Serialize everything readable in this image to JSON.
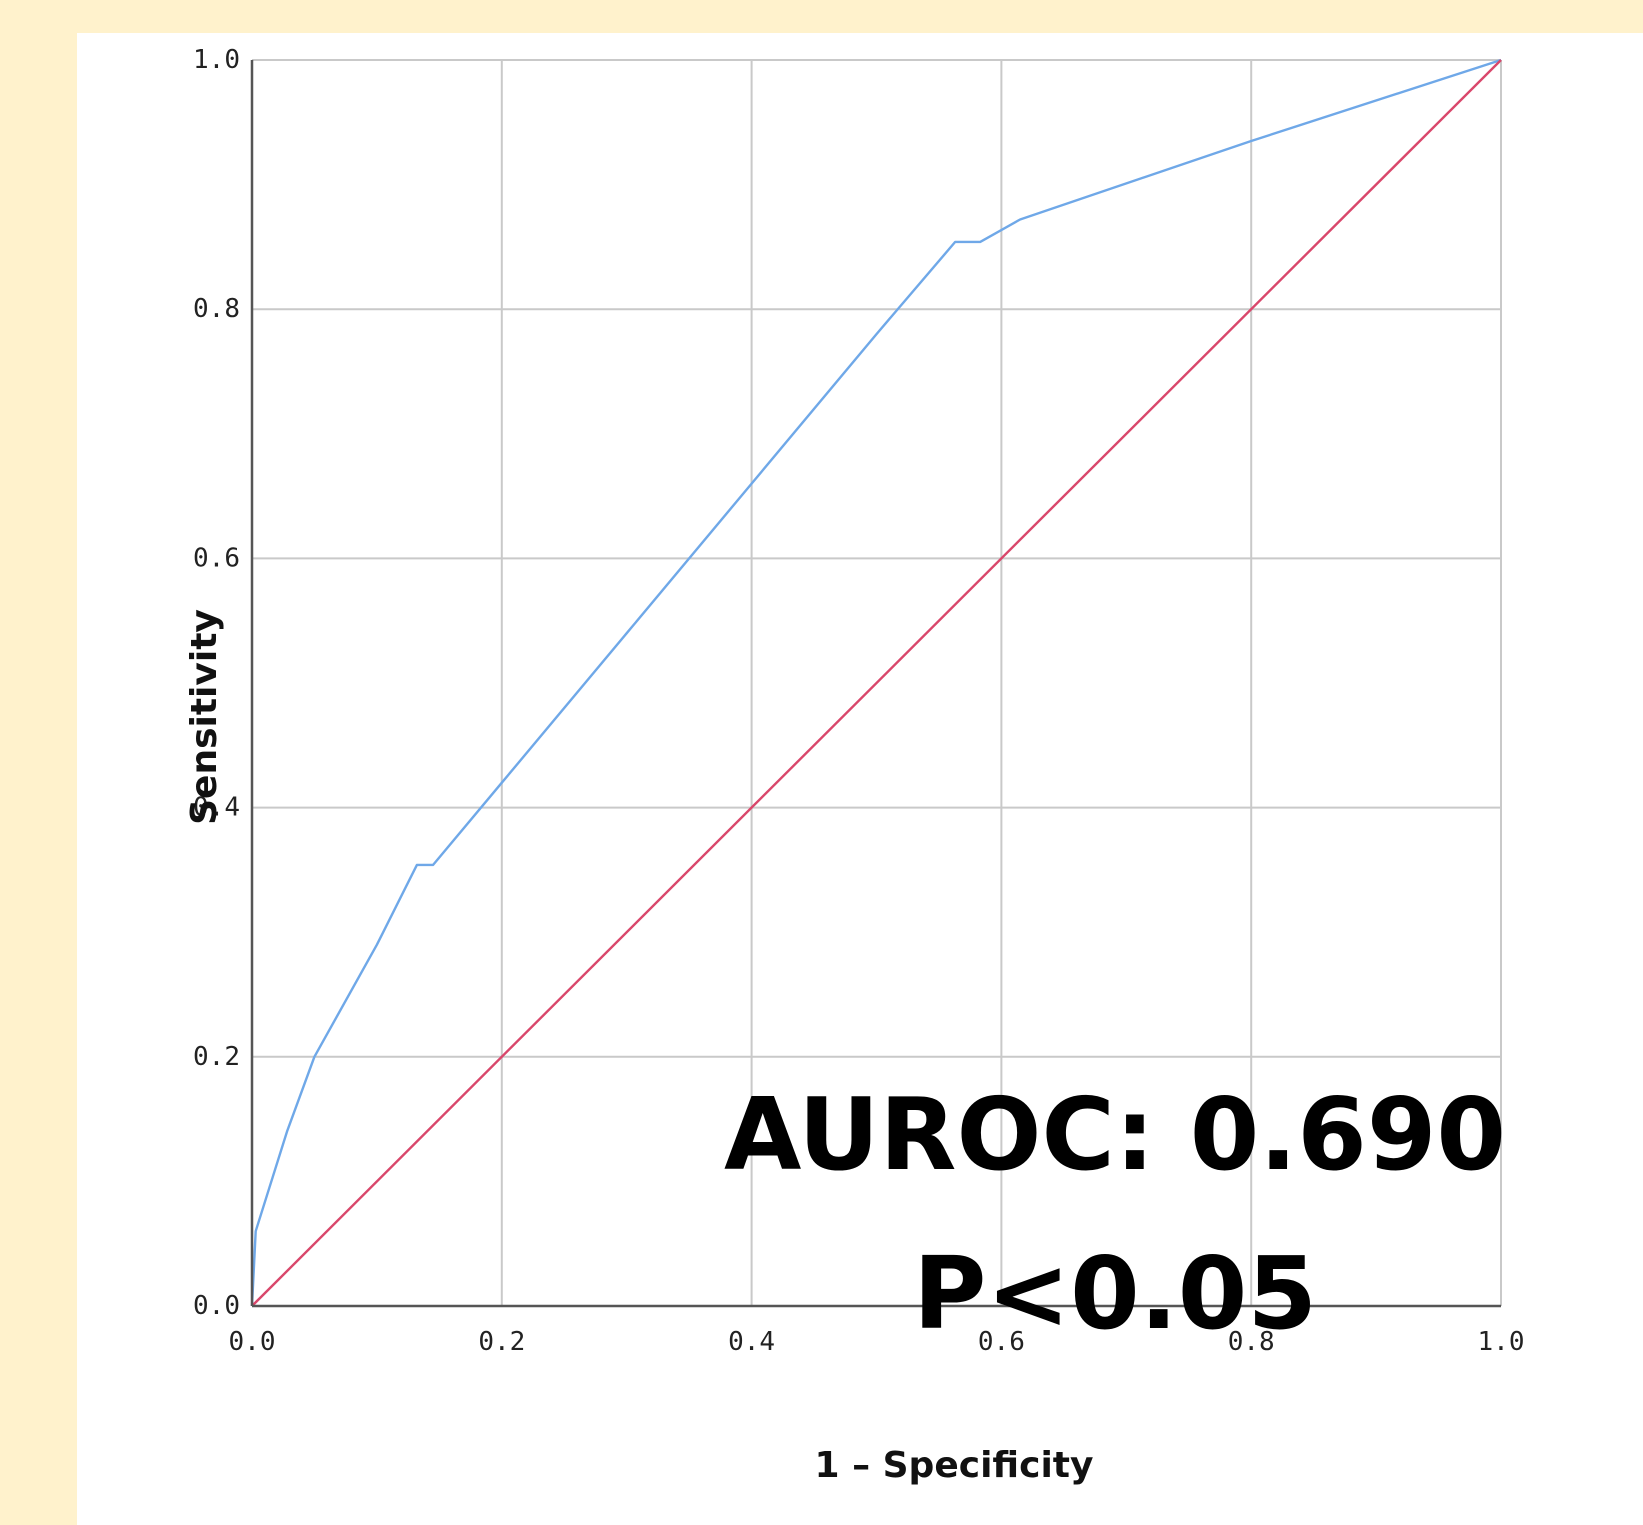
{
  "chart_data": {
    "type": "line",
    "title": "",
    "xlabel": "1 – Specificity",
    "ylabel": "Sensitivity",
    "xlim": [
      0,
      1
    ],
    "ylim": [
      0,
      1
    ],
    "grid": true,
    "xticks": [
      "0.0",
      "0.2",
      "0.4",
      "0.6",
      "0.8",
      "1.0"
    ],
    "yticks": [
      "0.0",
      "0.2",
      "0.4",
      "0.6",
      "0.8",
      "1.0"
    ],
    "series": [
      {
        "color": "#6FA8E8",
        "x": [
          0,
          0.003,
          0.028,
          0.05,
          0.1,
          0.132,
          0.145,
          0.2,
          0.3,
          0.4,
          0.5,
          0.563,
          0.583,
          0.615,
          0.8,
          1.0
        ],
        "y": [
          0,
          0.06,
          0.14,
          0.2,
          0.29,
          0.354,
          0.354,
          0.42,
          0.54,
          0.66,
          0.78,
          0.854,
          0.854,
          0.872,
          0.935,
          1.0
        ]
      },
      {
        "color": "#D9476B",
        "x": [
          0,
          1
        ],
        "y": [
          0,
          1
        ]
      }
    ],
    "annotations": [
      "AUROC: 0.690",
      "P<0.05"
    ]
  }
}
